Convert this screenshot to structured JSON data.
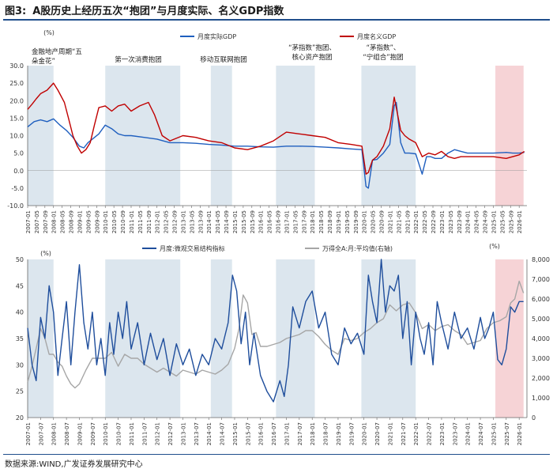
{
  "figure": {
    "title_prefix": "图3:",
    "title": "A股历史上经历五次“抱团”与月度实际、名义GDP指数",
    "source": "数据来源:WIND,广发证券发展研究中心"
  },
  "colors": {
    "real_gdp": "#1f5fbf",
    "nominal_gdp": "#c00000",
    "structure_index": "#1f4e9c",
    "wind_a_pe": "#a6a6a6",
    "shade_blue": "#dce6ee",
    "shade_red": "#f6d3d6",
    "axis": "#666666",
    "title_rule": "#1f4e8c"
  },
  "chart_data": [
    {
      "type": "line",
      "unit_label": "(%)",
      "ylim": [
        -10,
        30
      ],
      "yticks": [
        "30.0",
        "25.0",
        "20.0",
        "15.0",
        "10.0",
        "5.0",
        "0.0",
        "-5.0",
        "-10.0"
      ],
      "grid": false,
      "legend": "top",
      "x_tick_labels": [
        "2007-01",
        "2007-05",
        "2007-09",
        "2008-01",
        "2008-05",
        "2008-09",
        "2009-01",
        "2009-05",
        "2009-09",
        "2010-01",
        "2010-05",
        "2010-09",
        "2011-01",
        "2011-05",
        "2011-09",
        "2012-01",
        "2012-05",
        "2012-09",
        "2013-01",
        "2013-05",
        "2013-09",
        "2014-01",
        "2014-05",
        "2014-09",
        "2015-01",
        "2015-05",
        "2015-09",
        "2016-01",
        "2016-05",
        "2016-09",
        "2017-01",
        "2017-05",
        "2017-09",
        "2018-01",
        "2018-05",
        "2018-09",
        "2019-01",
        "2019-05",
        "2019-09",
        "2020-01",
        "2020-05",
        "2020-09",
        "2021-01",
        "2021-05",
        "2021-09",
        "2022-01",
        "2022-05",
        "2022-09",
        "2023-01",
        "2023-05",
        "2023-09",
        "2024-01",
        "2024-05",
        "2024-09",
        "2025-01",
        "2025-05",
        "2025-09",
        "2026-01"
      ],
      "annotations": [
        "金融地产周期“五朵金花”",
        "第一次消费抱团",
        "移动互联网抱团",
        "“茅指数”抱团、核心资产抱团",
        "“茅指数”、“宁组合”抱团"
      ],
      "series": [
        {
          "name": "月度实际GDP",
          "x": [
            2007.0,
            2007.25,
            2007.5,
            2007.75,
            2008.0,
            2008.25,
            2008.5,
            2008.75,
            2009.0,
            2009.17,
            2009.33,
            2009.5,
            2009.75,
            2010.0,
            2010.25,
            2010.5,
            2010.75,
            2011.0,
            2011.5,
            2012.0,
            2012.5,
            2013.0,
            2013.5,
            2014.0,
            2014.5,
            2015.0,
            2015.5,
            2016.0,
            2016.5,
            2017.0,
            2017.5,
            2018.0,
            2018.5,
            2019.0,
            2019.5,
            2019.92,
            2020.08,
            2020.17,
            2020.33,
            2020.5,
            2020.75,
            2021.0,
            2021.17,
            2021.25,
            2021.42,
            2021.58,
            2021.75,
            2022.0,
            2022.25,
            2022.42,
            2022.58,
            2022.75,
            2023.0,
            2023.25,
            2023.5,
            2023.75,
            2024.0,
            2024.5,
            2025.0,
            2025.5,
            2025.75,
            2026.0,
            2026.2
          ],
          "values": [
            12.5,
            14.0,
            14.5,
            14.0,
            14.8,
            13.0,
            11.5,
            9.5,
            7.0,
            6.5,
            8.0,
            9.0,
            10.5,
            13.0,
            12.0,
            10.5,
            10.0,
            10.0,
            9.5,
            9.0,
            8.0,
            8.0,
            7.8,
            7.5,
            7.3,
            7.0,
            7.0,
            6.8,
            6.7,
            7.0,
            7.0,
            6.9,
            6.7,
            6.5,
            6.2,
            6.0,
            -4.5,
            -5.0,
            3.0,
            3.2,
            5.0,
            7.5,
            18.5,
            19.5,
            8.0,
            5.0,
            5.0,
            4.8,
            -1.0,
            4.0,
            4.0,
            3.5,
            3.5,
            5.0,
            6.0,
            5.5,
            5.0,
            5.0,
            5.0,
            5.2,
            5.0,
            5.0,
            5.2
          ]
        },
        {
          "name": "月度名义GDP",
          "x": [
            2007.0,
            2007.17,
            2007.33,
            2007.5,
            2007.75,
            2008.0,
            2008.17,
            2008.42,
            2008.58,
            2008.75,
            2008.92,
            2009.08,
            2009.25,
            2009.42,
            2009.58,
            2009.75,
            2010.0,
            2010.25,
            2010.5,
            2010.75,
            2011.0,
            2011.33,
            2011.67,
            2011.9,
            2012.2,
            2012.5,
            2013.0,
            2013.5,
            2014.0,
            2014.5,
            2015.0,
            2015.5,
            2016.0,
            2016.5,
            2017.0,
            2017.5,
            2018.0,
            2018.5,
            2019.0,
            2019.5,
            2019.92,
            2020.08,
            2020.17,
            2020.33,
            2020.5,
            2020.75,
            2021.0,
            2021.17,
            2021.25,
            2021.42,
            2021.58,
            2021.75,
            2022.0,
            2022.25,
            2022.5,
            2022.75,
            2023.0,
            2023.25,
            2023.5,
            2023.75,
            2024.0,
            2024.5,
            2025.0,
            2025.5,
            2025.75,
            2026.0,
            2026.2
          ],
          "values": [
            17.5,
            19.0,
            20.5,
            22.0,
            23.0,
            25.0,
            23.0,
            19.5,
            15.0,
            10.0,
            7.0,
            5.0,
            6.0,
            8.0,
            13.0,
            18.0,
            18.5,
            17.0,
            18.5,
            19.0,
            17.0,
            18.5,
            19.5,
            16.0,
            10.0,
            8.5,
            10.0,
            9.5,
            8.5,
            8.0,
            6.5,
            6.0,
            7.0,
            8.5,
            11.0,
            10.5,
            10.0,
            9.5,
            8.0,
            7.5,
            7.0,
            -1.0,
            -0.5,
            3.0,
            4.0,
            7.0,
            12.0,
            21.0,
            18.0,
            11.5,
            10.0,
            9.0,
            8.0,
            4.0,
            5.0,
            4.5,
            5.5,
            4.0,
            3.5,
            4.0,
            4.0,
            4.0,
            4.0,
            3.5,
            4.0,
            4.5,
            5.5
          ]
        }
      ],
      "shaded_periods": [
        {
          "start": 2007.0,
          "end": 2008.0,
          "color": "blue"
        },
        {
          "start": 2010.0,
          "end": 2012.9,
          "color": "blue"
        },
        {
          "start": 2014.08,
          "end": 2014.9,
          "color": "blue"
        },
        {
          "start": 2016.6,
          "end": 2018.1,
          "color": "blue"
        },
        {
          "start": 2019.9,
          "end": 2022.0,
          "color": "blue"
        },
        {
          "start": 2025.08,
          "end": 2026.17,
          "color": "red"
        }
      ]
    },
    {
      "type": "line",
      "left_unit_label": "(%)",
      "right_unit_label": "(%)",
      "ylim": [
        20,
        50
      ],
      "ylim_right": [
        0,
        8000
      ],
      "yticks": [
        "50",
        "45",
        "40",
        "35",
        "30",
        "25",
        "20"
      ],
      "yticks_right": [
        "8,000",
        "7,000",
        "6,000",
        "5,000",
        "4,000",
        "3,000",
        "2,000",
        "1,000",
        "0"
      ],
      "grid": false,
      "legend": "top",
      "x_tick_labels": [
        "2007-01",
        "2007-07",
        "2008-01",
        "2008-07",
        "2009-01",
        "2009-07",
        "2010-01",
        "2010-07",
        "2011-01",
        "2011-07",
        "2012-01",
        "2012-07",
        "2013-01",
        "2013-07",
        "2014-01",
        "2014-07",
        "2015-01",
        "2015-07",
        "2016-01",
        "2016-07",
        "2017-01",
        "2017-07",
        "2018-01",
        "2018-07",
        "2019-01",
        "2019-07",
        "2020-01",
        "2020-07",
        "2021-01",
        "2021-07",
        "2022-01",
        "2022-07",
        "2023-01",
        "2023-07",
        "2024-01",
        "2024-07",
        "2025-01",
        "2025-07",
        "2026-01"
      ],
      "series": [
        {
          "name": "月度:微观交易结构指标",
          "axis": "left",
          "x": [
            2007.0,
            2007.17,
            2007.33,
            2007.5,
            2007.67,
            2007.83,
            2008.0,
            2008.17,
            2008.33,
            2008.5,
            2008.67,
            2008.83,
            2009.0,
            2009.17,
            2009.33,
            2009.5,
            2009.67,
            2009.83,
            2010.0,
            2010.17,
            2010.33,
            2010.5,
            2010.67,
            2010.83,
            2011.0,
            2011.25,
            2011.5,
            2011.75,
            2012.0,
            2012.25,
            2012.5,
            2012.75,
            2013.0,
            2013.25,
            2013.5,
            2013.75,
            2014.0,
            2014.25,
            2014.5,
            2014.75,
            2014.92,
            2015.08,
            2015.25,
            2015.42,
            2015.58,
            2015.75,
            2016.0,
            2016.25,
            2016.5,
            2016.75,
            2016.92,
            2017.08,
            2017.25,
            2017.5,
            2017.75,
            2018.0,
            2018.25,
            2018.5,
            2018.75,
            2019.0,
            2019.25,
            2019.5,
            2019.75,
            2020.0,
            2020.17,
            2020.33,
            2020.5,
            2020.67,
            2020.83,
            2021.0,
            2021.17,
            2021.33,
            2021.5,
            2021.67,
            2021.83,
            2022.0,
            2022.17,
            2022.33,
            2022.5,
            2022.67,
            2022.83,
            2023.0,
            2023.25,
            2023.5,
            2023.75,
            2024.0,
            2024.25,
            2024.5,
            2024.67,
            2024.83,
            2025.0,
            2025.17,
            2025.33,
            2025.5,
            2025.67,
            2025.83,
            2026.0,
            2026.17
          ],
          "values": [
            37,
            30,
            27,
            39,
            35,
            45,
            40,
            28,
            35,
            42,
            30,
            40,
            49,
            38,
            33,
            40,
            30,
            35,
            28,
            38,
            32,
            40,
            35,
            42,
            33,
            38,
            30,
            36,
            31,
            35,
            28,
            34,
            30,
            33,
            28,
            32,
            30,
            35,
            33,
            38,
            47,
            44,
            34,
            40,
            30,
            36,
            28,
            25,
            23,
            27,
            24,
            30,
            41,
            37,
            42,
            44,
            37,
            40,
            32,
            30,
            37,
            34,
            36,
            32,
            47,
            42,
            38,
            50,
            40,
            45,
            44,
            47,
            35,
            42,
            30,
            40,
            35,
            32,
            38,
            30,
            42,
            38,
            33,
            40,
            35,
            37,
            33,
            39,
            35,
            37,
            40,
            31,
            30,
            33,
            41,
            40,
            42,
            42
          ]
        },
        {
          "name": "万得全A:月:平均值(右轴)",
          "axis": "right",
          "x": [
            2007.0,
            2007.17,
            2007.33,
            2007.5,
            2007.67,
            2007.83,
            2008.0,
            2008.17,
            2008.33,
            2008.5,
            2008.67,
            2008.83,
            2009.0,
            2009.25,
            2009.5,
            2009.75,
            2010.0,
            2010.25,
            2010.5,
            2010.75,
            2011.0,
            2011.25,
            2011.5,
            2011.75,
            2012.0,
            2012.25,
            2012.5,
            2012.75,
            2013.0,
            2013.25,
            2013.5,
            2013.75,
            2014.0,
            2014.25,
            2014.5,
            2014.75,
            2015.0,
            2015.17,
            2015.33,
            2015.5,
            2015.67,
            2015.83,
            2016.0,
            2016.25,
            2016.5,
            2016.75,
            2017.0,
            2017.25,
            2017.5,
            2017.75,
            2018.0,
            2018.25,
            2018.5,
            2018.75,
            2019.0,
            2019.25,
            2019.5,
            2019.75,
            2020.0,
            2020.25,
            2020.5,
            2020.75,
            2021.0,
            2021.25,
            2021.5,
            2021.75,
            2022.0,
            2022.25,
            2022.5,
            2022.75,
            2023.0,
            2023.25,
            2023.5,
            2023.75,
            2024.0,
            2024.25,
            2024.5,
            2024.75,
            2025.0,
            2025.25,
            2025.5,
            2025.67,
            2025.83,
            2026.0,
            2026.17
          ],
          "values": [
            1800,
            2600,
            3500,
            4500,
            4000,
            3200,
            3200,
            2800,
            2600,
            2100,
            1700,
            1500,
            1700,
            2400,
            3000,
            3000,
            3000,
            3300,
            2600,
            3200,
            3000,
            3000,
            2700,
            2500,
            2300,
            2500,
            2300,
            2100,
            2400,
            2300,
            2200,
            2400,
            2300,
            2200,
            2400,
            2700,
            3500,
            4500,
            6200,
            5800,
            4200,
            4300,
            3600,
            3600,
            3700,
            3800,
            4000,
            4100,
            4200,
            4400,
            4400,
            4100,
            3700,
            3400,
            3200,
            4000,
            3900,
            4000,
            4300,
            4500,
            4800,
            5000,
            5700,
            5400,
            5700,
            5800,
            5300,
            4500,
            4700,
            4400,
            4600,
            4700,
            4400,
            4200,
            3700,
            3800,
            3900,
            4500,
            4800,
            4900,
            5100,
            5800,
            6000,
            6900,
            6300
          ]
        }
      ],
      "shaded_periods": [
        {
          "start": 2007.0,
          "end": 2008.0,
          "color": "blue"
        },
        {
          "start": 2010.0,
          "end": 2012.9,
          "color": "blue"
        },
        {
          "start": 2014.08,
          "end": 2014.9,
          "color": "blue"
        },
        {
          "start": 2016.6,
          "end": 2018.1,
          "color": "blue"
        },
        {
          "start": 2019.9,
          "end": 2022.0,
          "color": "blue"
        },
        {
          "start": 2025.08,
          "end": 2026.17,
          "color": "red"
        }
      ]
    }
  ]
}
